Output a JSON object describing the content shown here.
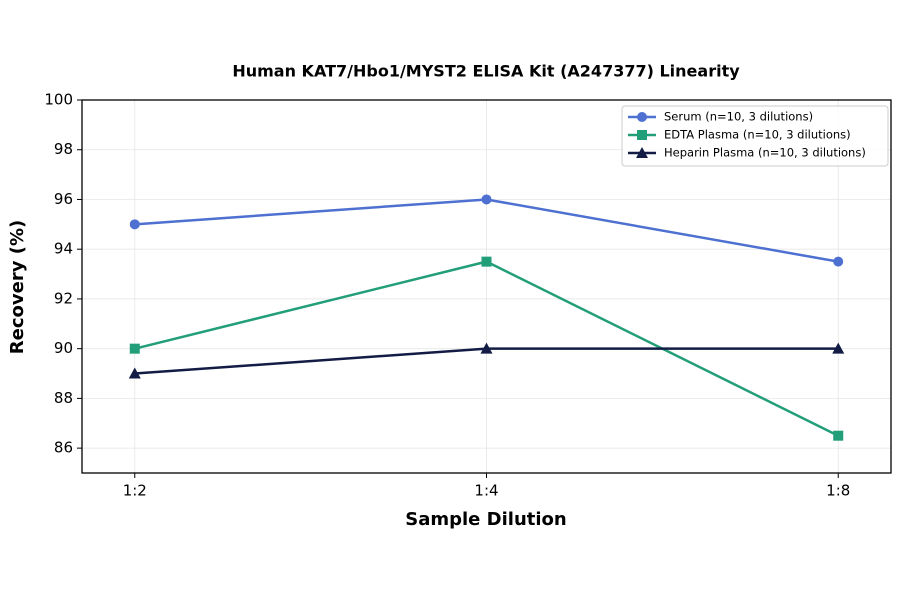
{
  "chart_data": {
    "type": "line",
    "title": "Human KAT7/Hbo1/MYST2 ELISA Kit (A247377) Linearity",
    "x_label": "Sample Dilution",
    "y_label": "Recovery (%)",
    "categories": [
      "1:2",
      "1:4",
      "1:8"
    ],
    "series": [
      {
        "name": "Serum (n=10, 3 dilutions)",
        "color": "#4d70d1",
        "marker": "circle",
        "values": [
          95,
          96,
          93.5
        ]
      },
      {
        "name": "EDTA Plasma (n=10, 3 dilutions)",
        "color": "#229e78",
        "marker": "square",
        "values": [
          90,
          93.5,
          86.5
        ]
      },
      {
        "name": "Heparin Plasma (n=10, 3 dilutions)",
        "color": "#131c45",
        "marker": "triangle",
        "values": [
          89,
          90,
          90
        ]
      }
    ],
    "ylim": [
      85,
      100
    ],
    "yticks": [
      86,
      88,
      90,
      92,
      94,
      96,
      98,
      100
    ],
    "grid": true,
    "legend": "upper right"
  }
}
